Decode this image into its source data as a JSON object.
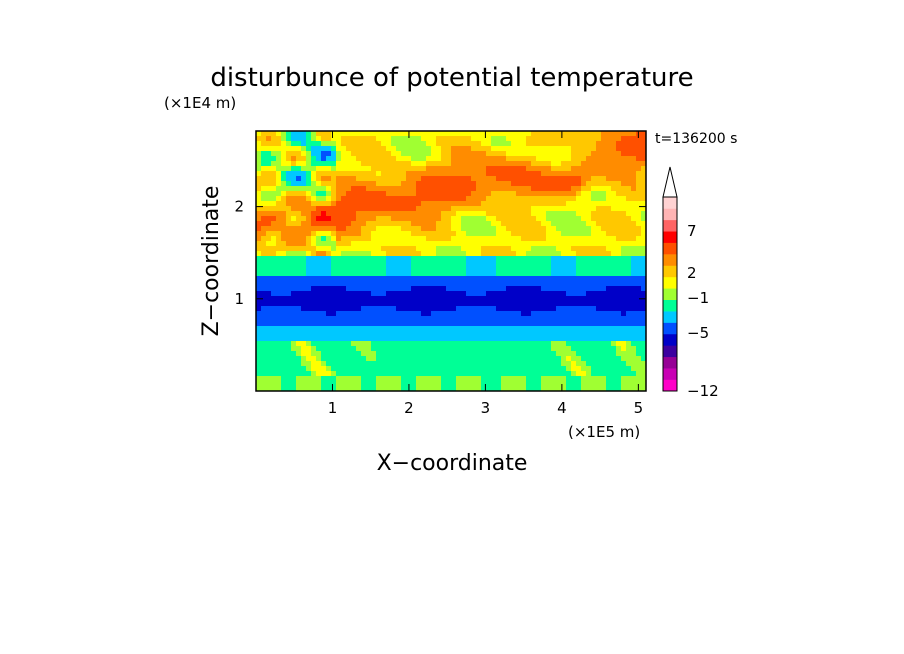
{
  "chart_data": {
    "type": "heatmap",
    "title": "disturbunce of potential temperature",
    "time_label": "t=136200 s",
    "xlabel": "X−coordinate",
    "ylabel": "Z−coordinate",
    "x_unit": "(×1E5 m)",
    "y_unit": "(×1E4 m)",
    "x_ticks": [
      1,
      2,
      3,
      4,
      5
    ],
    "y_ticks": [
      1,
      2
    ],
    "x_tick_labels": [
      "1",
      "2",
      "3",
      "4",
      "5"
    ],
    "y_tick_labels": [
      "1",
      "2"
    ],
    "xlim": [
      0,
      5.1
    ],
    "ylim": [
      0,
      2.82
    ],
    "legend_placement": "right",
    "colorbar": {
      "levels_shown": [
        -12,
        -5,
        -1,
        2,
        7
      ],
      "level_labels": [
        "−12",
        "−5",
        "−1",
        "2",
        "7"
      ],
      "extend": "max",
      "colors": [
        "#ff00c8",
        "#c800b4",
        "#960096",
        "#3c00a0",
        "#0000c8",
        "#0050ff",
        "#00c8ff",
        "#00ff96",
        "#a0ff32",
        "#ffff00",
        "#ffc800",
        "#ff8c00",
        "#ff5000",
        "#ff0000",
        "#ff6464",
        "#ffb4b4",
        "#ffd2d2",
        "#ffdede"
      ]
    }
  }
}
